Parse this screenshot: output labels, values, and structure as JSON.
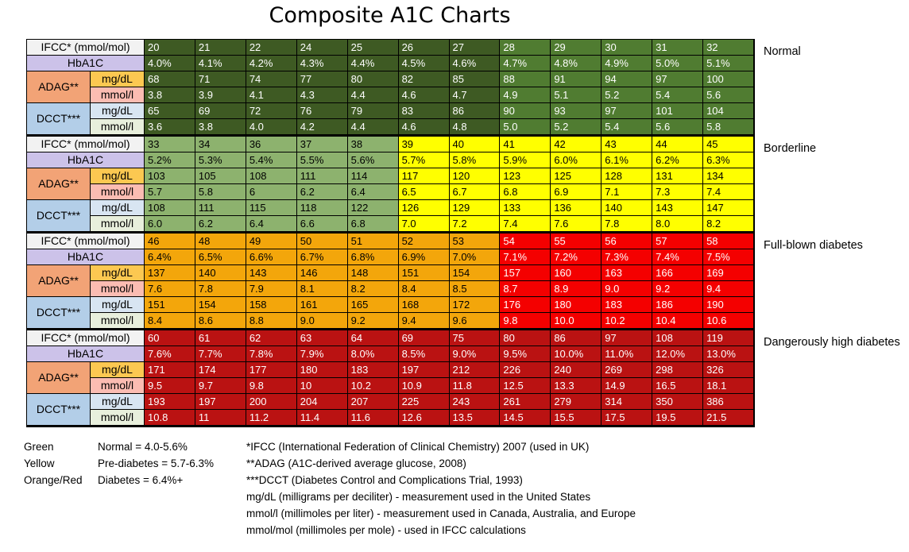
{
  "title": "Composite A1C Charts",
  "palette": {
    "dark_green": "#3e5a23",
    "mid_green": "#507c31",
    "light_green": "#8db26e",
    "yellow": "#ffff00",
    "orange": "#f3a60b",
    "bright_red": "#f40000",
    "dark_red": "#ba1212",
    "label_ifcc": "#f2f2f2",
    "label_hba1c": "#ccc2e9",
    "label_adag": "#f2a376",
    "label_adag_mg": "#fcc851",
    "label_adag_mmol": "#fbbcb2",
    "label_dcct": "#b3cee8",
    "label_dcct_mg": "#d8e5f2",
    "label_dcct_mmol": "#e8efdc"
  },
  "white_text_colors": [
    "dark_green",
    "mid_green",
    "bright_red",
    "dark_red"
  ],
  "chart_data": {
    "type": "table",
    "title": "Composite A1C Charts",
    "row_headers": {
      "ifcc": "IFCC* (mmol/mol)",
      "hba1c": "HbA1C",
      "adag": "ADAG**",
      "dcct": "DCCT***",
      "mg_dl": "mg/dL",
      "mmol_l": "mmol/l"
    },
    "blocks": [
      {
        "category": "Normal",
        "col_colors": [
          "dark_green",
          "dark_green",
          "dark_green",
          "dark_green",
          "dark_green",
          "dark_green",
          "dark_green",
          "mid_green",
          "mid_green",
          "mid_green",
          "mid_green",
          "mid_green"
        ],
        "rows": {
          "ifcc": [
            "20",
            "21",
            "22",
            "24",
            "25",
            "26",
            "27",
            "28",
            "29",
            "30",
            "31",
            "32"
          ],
          "hba1c": [
            "4.0%",
            "4.1%",
            "4.2%",
            "4.3%",
            "4.4%",
            "4.5%",
            "4.6%",
            "4.7%",
            "4.8%",
            "4.9%",
            "5.0%",
            "5.1%"
          ],
          "adag_mg_dl": [
            "68",
            "71",
            "74",
            "77",
            "80",
            "82",
            "85",
            "88",
            "91",
            "94",
            "97",
            "100"
          ],
          "adag_mmol_l": [
            "3.8",
            "3.9",
            "4.1",
            "4.3",
            "4.4",
            "4.6",
            "4.7",
            "4.9",
            "5.1",
            "5.2",
            "5.4",
            "5.6"
          ],
          "dcct_mg_dl": [
            "65",
            "69",
            "72",
            "76",
            "79",
            "83",
            "86",
            "90",
            "93",
            "97",
            "101",
            "104"
          ],
          "dcct_mmol_l": [
            "3.6",
            "3.8",
            "4.0",
            "4.2",
            "4.4",
            "4.6",
            "4.8",
            "5.0",
            "5.2",
            "5.4",
            "5.6",
            "5.8"
          ]
        }
      },
      {
        "category": "Borderline",
        "col_colors": [
          "light_green",
          "light_green",
          "light_green",
          "light_green",
          "light_green",
          "yellow",
          "yellow",
          "yellow",
          "yellow",
          "yellow",
          "yellow",
          "yellow"
        ],
        "rows": {
          "ifcc": [
            "33",
            "34",
            "36",
            "37",
            "38",
            "39",
            "40",
            "41",
            "42",
            "43",
            "44",
            "45"
          ],
          "hba1c": [
            "5.2%",
            "5.3%",
            "5.4%",
            "5.5%",
            "5.6%",
            "5.7%",
            "5.8%",
            "5.9%",
            "6.0%",
            "6.1%",
            "6.2%",
            "6.3%"
          ],
          "adag_mg_dl": [
            "103",
            "105",
            "108",
            "111",
            "114",
            "117",
            "120",
            "123",
            "125",
            "128",
            "131",
            "134"
          ],
          "adag_mmol_l": [
            "5.7",
            "5.8",
            "6",
            "6.2",
            "6.4",
            "6.5",
            "6.7",
            "6.8",
            "6.9",
            "7.1",
            "7.3",
            "7.4"
          ],
          "dcct_mg_dl": [
            "108",
            "111",
            "115",
            "118",
            "122",
            "126",
            "129",
            "133",
            "136",
            "140",
            "143",
            "147"
          ],
          "dcct_mmol_l": [
            "6.0",
            "6.2",
            "6.4",
            "6.6",
            "6.8",
            "7.0",
            "7.2",
            "7.4",
            "7.6",
            "7.8",
            "8.0",
            "8.2"
          ]
        }
      },
      {
        "category": "Full-blown diabetes",
        "col_colors": [
          "orange",
          "orange",
          "orange",
          "orange",
          "orange",
          "orange",
          "orange",
          "bright_red",
          "bright_red",
          "bright_red",
          "bright_red",
          "bright_red"
        ],
        "rows": {
          "ifcc": [
            "46",
            "48",
            "49",
            "50",
            "51",
            "52",
            "53",
            "54",
            "55",
            "56",
            "57",
            "58"
          ],
          "hba1c": [
            "6.4%",
            "6.5%",
            "6.6%",
            "6.7%",
            "6.8%",
            "6.9%",
            "7.0%",
            "7.1%",
            "7.2%",
            "7.3%",
            "7.4%",
            "7.5%"
          ],
          "adag_mg_dl": [
            "137",
            "140",
            "143",
            "146",
            "148",
            "151",
            "154",
            "157",
            "160",
            "163",
            "166",
            "169"
          ],
          "adag_mmol_l": [
            "7.6",
            "7.8",
            "7.9",
            "8.1",
            "8.2",
            "8.4",
            "8.5",
            "8.7",
            "8.9",
            "9.0",
            "9.2",
            "9.4"
          ],
          "dcct_mg_dl": [
            "151",
            "154",
            "158",
            "161",
            "165",
            "168",
            "172",
            "176",
            "180",
            "183",
            "186",
            "190"
          ],
          "dcct_mmol_l": [
            "8.4",
            "8.6",
            "8.8",
            "9.0",
            "9.2",
            "9.4",
            "9.6",
            "9.8",
            "10.0",
            "10.2",
            "10.4",
            "10.6"
          ]
        }
      },
      {
        "category": "Dangerously high diabetes",
        "col_colors": [
          "dark_red",
          "dark_red",
          "dark_red",
          "dark_red",
          "dark_red",
          "dark_red",
          "dark_red",
          "dark_red",
          "dark_red",
          "dark_red",
          "dark_red",
          "dark_red"
        ],
        "rows": {
          "ifcc": [
            "60",
            "61",
            "62",
            "63",
            "64",
            "69",
            "75",
            "80",
            "86",
            "97",
            "108",
            "119"
          ],
          "hba1c": [
            "7.6%",
            "7.7%",
            "7.8%",
            "7.9%",
            "8.0%",
            "8.5%",
            "9.0%",
            "9.5%",
            "10.0%",
            "11.0%",
            "12.0%",
            "13.0%"
          ],
          "adag_mg_dl": [
            "171",
            "174",
            "177",
            "180",
            "183",
            "197",
            "212",
            "226",
            "240",
            "269",
            "298",
            "326"
          ],
          "adag_mmol_l": [
            "9.5",
            "9.7",
            "9.8",
            "10",
            "10.2",
            "10.9",
            "11.8",
            "12.5",
            "13.3",
            "14.9",
            "16.5",
            "18.1"
          ],
          "dcct_mg_dl": [
            "193",
            "197",
            "200",
            "204",
            "207",
            "225",
            "243",
            "261",
            "279",
            "314",
            "350",
            "386"
          ],
          "dcct_mmol_l": [
            "10.8",
            "11",
            "11.2",
            "11.4",
            "11.6",
            "12.6",
            "13.5",
            "14.5",
            "15.5",
            "17.5",
            "19.5",
            "21.5"
          ]
        }
      }
    ]
  },
  "legend": {
    "items": [
      {
        "color_name": "Green",
        "definition": "Normal = 4.0-5.6%"
      },
      {
        "color_name": "Yellow",
        "definition": "Pre-diabetes = 5.7-6.3%"
      },
      {
        "color_name": "Orange/Red",
        "definition": "Diabetes = 6.4%+"
      }
    ]
  },
  "footnotes": [
    "*IFCC (International Federation of Clinical Chemistry) 2007 (used in UK)",
    "**ADAG (A1C-derived average glucose, 2008)",
    "***DCCT (Diabetes Control and Complications Trial, 1993)",
    "mg/dL (milligrams per deciliter) - measurement used in the United States",
    "mmol/l (millimoles per liter) - measurement used in Canada, Australia, and Europe",
    "mmol/mol (millimoles per mole) - used in IFCC calculations"
  ]
}
